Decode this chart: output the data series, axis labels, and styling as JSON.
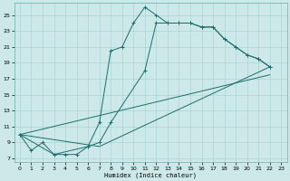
{
  "xlabel": "Humidex (Indice chaleur)",
  "bg_color": "#cce8e8",
  "grid_color": "#aad4d4",
  "line_color": "#1a6e6e",
  "xlim": [
    -0.5,
    23.5
  ],
  "ylim": [
    6.5,
    26.5
  ],
  "xticks": [
    0,
    1,
    2,
    3,
    4,
    5,
    6,
    7,
    8,
    9,
    10,
    11,
    12,
    13,
    14,
    15,
    16,
    17,
    18,
    19,
    20,
    21,
    22,
    23
  ],
  "yticks": [
    7,
    9,
    11,
    13,
    15,
    17,
    19,
    21,
    23,
    25
  ],
  "line1_x": [
    0,
    1,
    2,
    3,
    4,
    5,
    6,
    7,
    8,
    9,
    10,
    11,
    12,
    13,
    14,
    15,
    16,
    17,
    18,
    19,
    20,
    21,
    22
  ],
  "line1_y": [
    10,
    8,
    9,
    7.5,
    7.5,
    7.5,
    8.5,
    11.5,
    20.5,
    21,
    24,
    26,
    25,
    24,
    24,
    24,
    23.5,
    23.5,
    22,
    21,
    20,
    19.5,
    18.5
  ],
  "line2_x": [
    0,
    3,
    6,
    7,
    8,
    11,
    12,
    13,
    14,
    15,
    16,
    17,
    18,
    19,
    20,
    21,
    22
  ],
  "line2_y": [
    10,
    7.5,
    8.5,
    9,
    11.5,
    18,
    24,
    24,
    24,
    24,
    23.5,
    23.5,
    22,
    21,
    20,
    19.5,
    18.5
  ],
  "line3_x": [
    0,
    7,
    22
  ],
  "line3_y": [
    10,
    8.5,
    18.5
  ],
  "line4_x": [
    0,
    22
  ],
  "line4_y": [
    10,
    17.5
  ]
}
